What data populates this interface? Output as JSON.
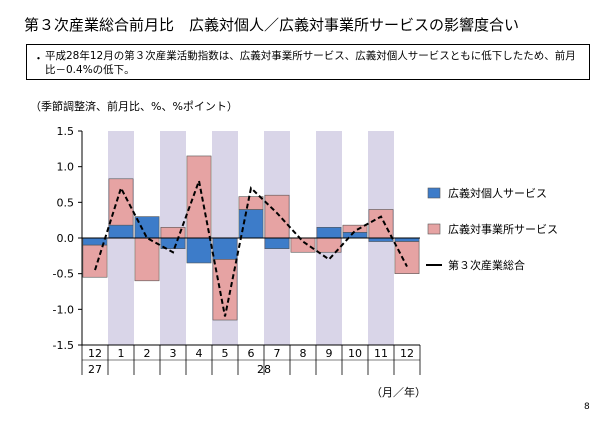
{
  "title": "第３次産業総合前月比　広義対個人／広義対事業所サービスの影響度合い",
  "summary": {
    "bullet": "・",
    "text": "平成28年12月の第３次産業活動指数は、広義対事業所サービス、広義対個人サービスともに低下したため、前月比－0.4%の低下。"
  },
  "unit_note": "（季節調整済、前月比、%、%ポイント）",
  "page_number": "8",
  "chart_data": {
    "type": "bar",
    "stacked": true,
    "categories": [
      "12",
      "1",
      "2",
      "3",
      "4",
      "5",
      "6",
      "7",
      "8",
      "9",
      "10",
      "11",
      "12"
    ],
    "year_labels": [
      {
        "label": "27",
        "index": 0
      },
      {
        "label": "28",
        "index": 6.5
      }
    ],
    "x_unit_label": "（月／年）",
    "ylim": [
      -1.5,
      1.5
    ],
    "y_ticks": [
      -1.5,
      -1.0,
      -0.5,
      0.0,
      0.5,
      1.0,
      1.5
    ],
    "y_tick_labels": [
      "-1.5",
      "-1.0",
      "-0.5",
      "0.0",
      "0.5",
      "1.0",
      "1.5"
    ],
    "shaded_categories": [
      1,
      3,
      5,
      7,
      9,
      11
    ],
    "series": [
      {
        "name": "広義対個人サービス",
        "kind": "bar",
        "color": "#3d7cc9",
        "values": [
          -0.1,
          0.18,
          0.3,
          -0.15,
          -0.35,
          -0.3,
          0.4,
          -0.15,
          0.0,
          0.15,
          0.08,
          -0.05,
          -0.05
        ]
      },
      {
        "name": "広義対事業所サービス",
        "kind": "bar",
        "color": "#e6a3a3",
        "values": [
          -0.45,
          0.65,
          -0.6,
          0.15,
          1.15,
          -0.85,
          0.18,
          0.6,
          -0.2,
          -0.2,
          0.1,
          0.4,
          -0.45
        ]
      },
      {
        "name": "第３次産業総合",
        "kind": "line",
        "color": "#000000",
        "dashed": true,
        "values": [
          -0.45,
          0.7,
          0.0,
          -0.2,
          0.8,
          -1.1,
          0.7,
          0.35,
          -0.05,
          -0.3,
          0.1,
          0.3,
          -0.4
        ]
      }
    ],
    "legend_position": "right",
    "grid": false,
    "shade_color": "#d9d5e8"
  }
}
